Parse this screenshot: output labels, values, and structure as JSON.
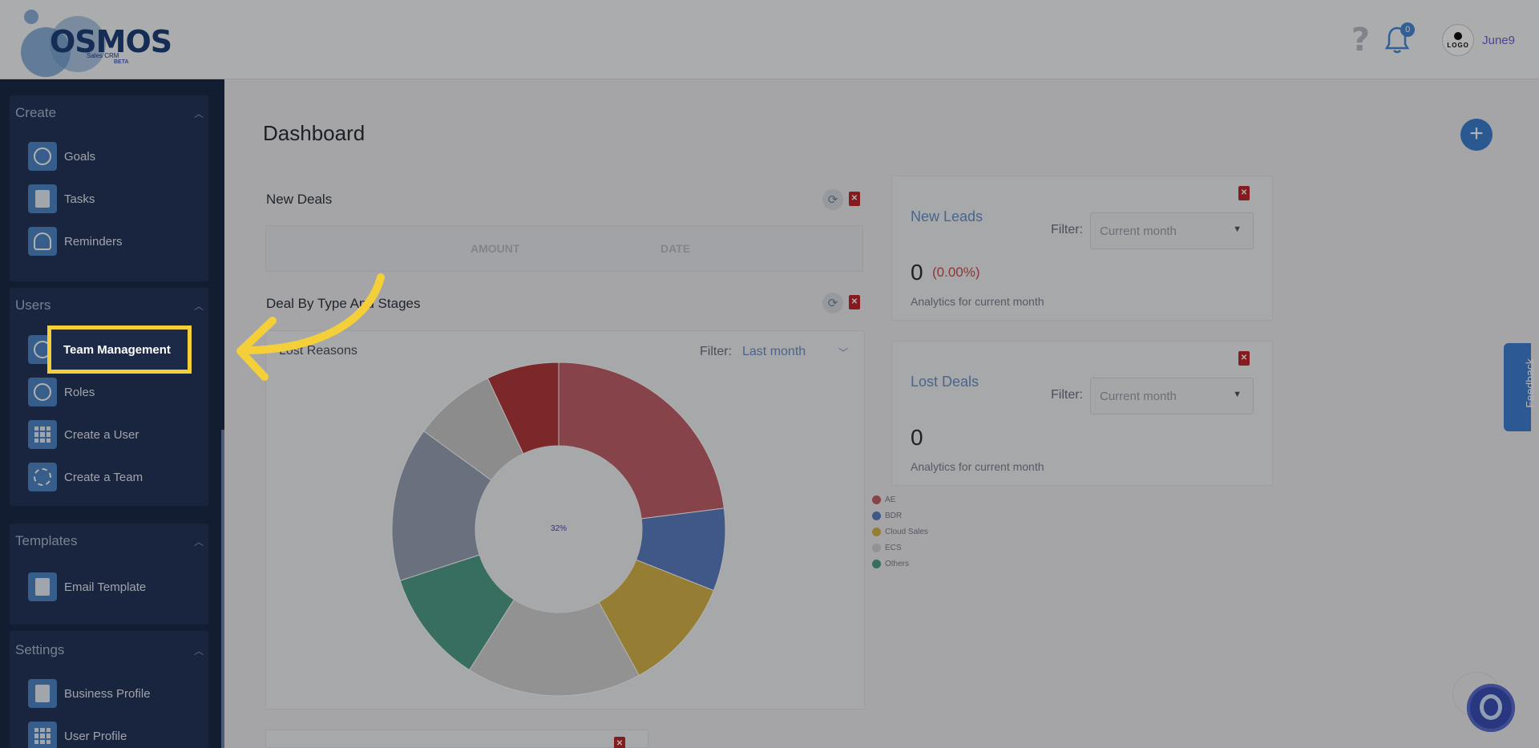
{
  "header": {
    "brand": "OSMOS",
    "brand_sub": "Sales CRM",
    "brand_beta": "BETA",
    "notification_count": "0",
    "avatar_text": "LOGO",
    "user_name": "June9"
  },
  "sidebar": {
    "groups": [
      {
        "title": "Create",
        "items": [
          "Goals",
          "Tasks",
          "Reminders"
        ]
      },
      {
        "title": "Users",
        "items": [
          "Team Management",
          "Roles",
          "Create a User",
          "Create a Team"
        ]
      },
      {
        "title": "Templates",
        "items": [
          "Email Template"
        ]
      },
      {
        "title": "Settings",
        "items": [
          "Business Profile",
          "User Profile"
        ]
      }
    ]
  },
  "main": {
    "page_title": "Dashboard",
    "new_deals": {
      "title": "New Deals",
      "columns": [
        "AMOUNT",
        "DATE"
      ]
    },
    "deal_stages": {
      "title": "Deal By Type And Stages",
      "subtitle": "Lost Reasons",
      "filter_label": "Filter:",
      "filter_value": "Last month"
    },
    "new_leads": {
      "title": "New Leads",
      "filter_label": "Filter:",
      "filter_value": "Current month",
      "value": "0",
      "change": "(0.00%)",
      "note": "Analytics for current month"
    },
    "lost_deals": {
      "title": "Lost Deals",
      "filter_label": "Filter:",
      "filter_value": "Current month",
      "value": "0",
      "note": "Analytics for current month"
    },
    "feedback_label": "Feedback"
  },
  "chart_data": {
    "type": "pie",
    "center_label": "32%",
    "legend": [
      {
        "name": "AE",
        "color": "#c0616b"
      },
      {
        "name": "BDR",
        "color": "#5b7ec2"
      },
      {
        "name": "Cloud Sales",
        "color": "#d6b54b"
      },
      {
        "name": "ECS",
        "color": "#d2d2d2"
      },
      {
        "name": "Others",
        "color": "#4f9e88"
      }
    ],
    "slices": [
      {
        "value": 23,
        "color": "#c0616b"
      },
      {
        "value": 8,
        "color": "#5b7ec2"
      },
      {
        "value": 11,
        "color": "#d6b54b"
      },
      {
        "value": 17,
        "color": "#d2d2d2"
      },
      {
        "value": 11,
        "color": "#4f9e88"
      },
      {
        "value": 15,
        "color": "#97a3b6"
      },
      {
        "value": 8,
        "color": "#c9c9c9"
      },
      {
        "value": 7,
        "color": "#b2393d"
      }
    ]
  }
}
